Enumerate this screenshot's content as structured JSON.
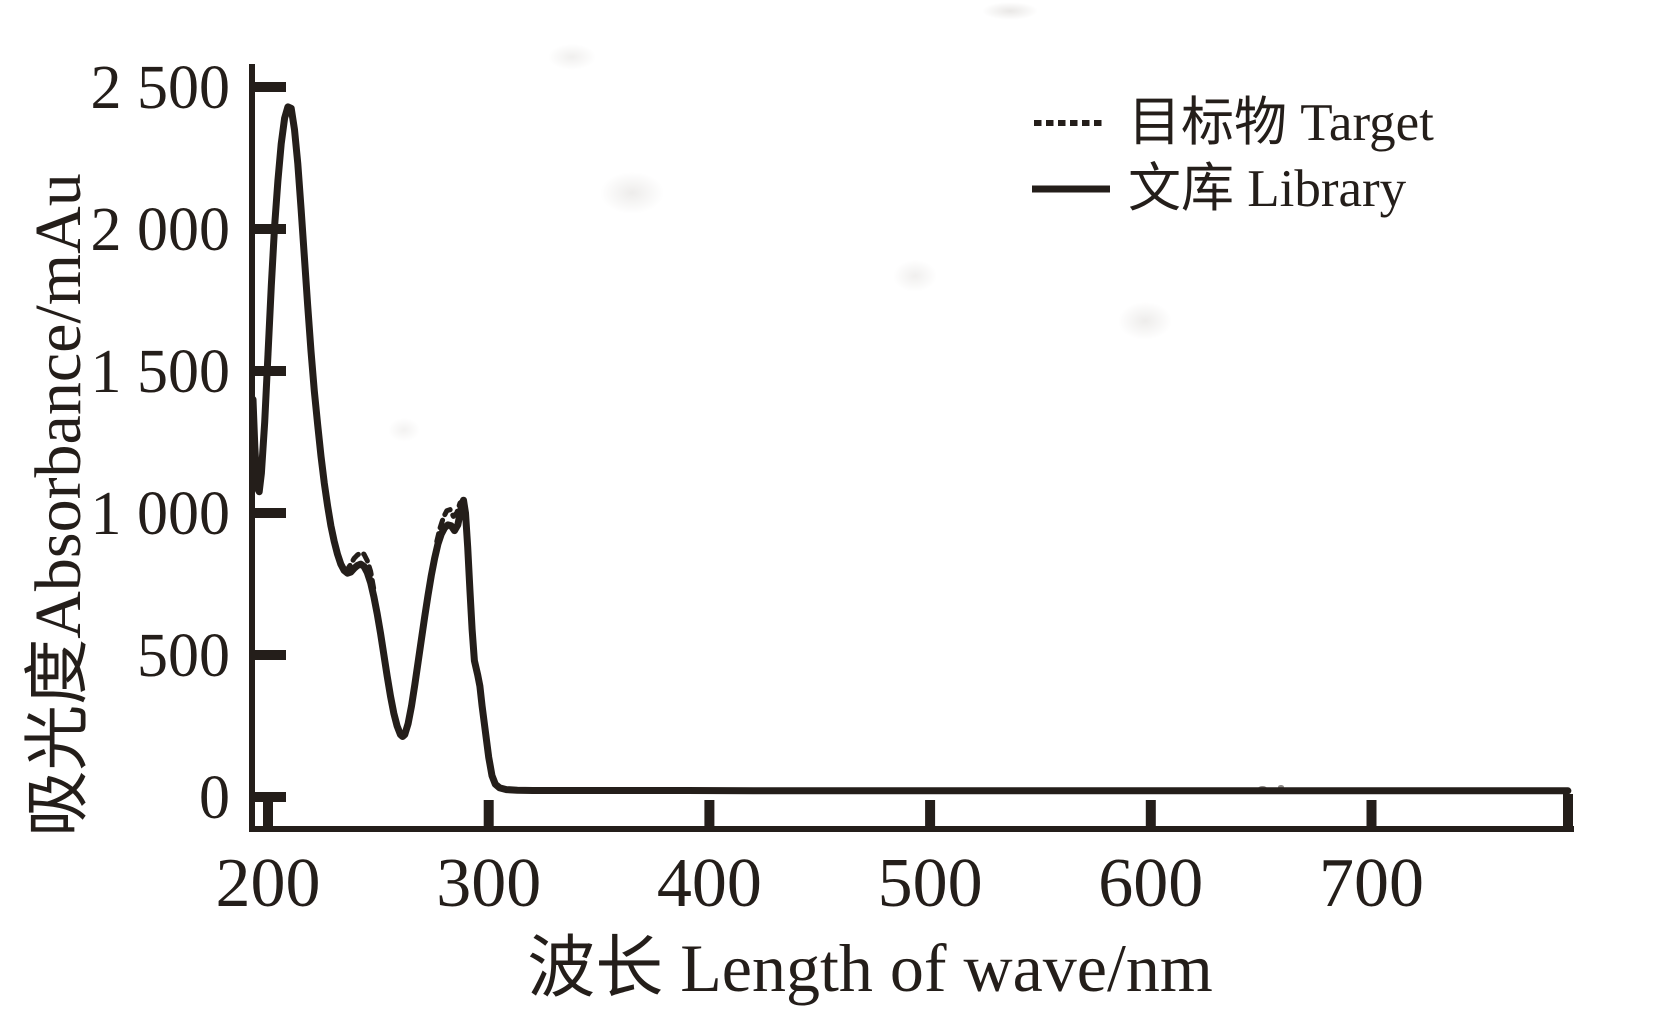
{
  "figure": {
    "background": "#ffffff",
    "ink_color": "#241e1a"
  },
  "legend": {
    "items": [
      {
        "label": "目标物 Target",
        "style": "dashed"
      },
      {
        "label": "文库 Library",
        "style": "solid"
      }
    ]
  },
  "chart_data": {
    "type": "line",
    "title": "",
    "xlabel": "波长 Length of wave/nm",
    "ylabel": "吸光度Absorbance/mAu",
    "xlim": [
      193,
      795
    ],
    "ylim": [
      0,
      2500
    ],
    "grid": false,
    "legend_position": "top-right",
    "x_ticks": [
      {
        "label": "200",
        "value": 200
      },
      {
        "label": "300",
        "value": 300
      },
      {
        "label": "400",
        "value": 400
      },
      {
        "label": "500",
        "value": 500
      },
      {
        "label": "600",
        "value": 600
      },
      {
        "label": "700",
        "value": 700
      }
    ],
    "y_ticks": [
      {
        "label": "0",
        "value": 0
      },
      {
        "label": "500",
        "value": 500
      },
      {
        "label": "1 000",
        "value": 1000
      },
      {
        "label": "1 500",
        "value": 1500
      },
      {
        "label": "2 000",
        "value": 2000
      },
      {
        "label": "2 500",
        "value": 2500
      }
    ],
    "series": [
      {
        "name": "文库 Library",
        "style": "solid",
        "color": "#241e1a",
        "points": [
          [
            193.2,
            1400
          ],
          [
            194,
            1235
          ],
          [
            195,
            1090
          ],
          [
            196,
            1075
          ],
          [
            197,
            1140
          ],
          [
            198.5,
            1320
          ],
          [
            200,
            1560
          ],
          [
            201.5,
            1800
          ],
          [
            203,
            2010
          ],
          [
            204.5,
            2170
          ],
          [
            206,
            2300
          ],
          [
            207.5,
            2390
          ],
          [
            209,
            2430
          ],
          [
            210.5,
            2425
          ],
          [
            212,
            2350
          ],
          [
            213.5,
            2230
          ],
          [
            215,
            2070
          ],
          [
            216.5,
            1900
          ],
          [
            218,
            1730
          ],
          [
            219.5,
            1570
          ],
          [
            221,
            1430
          ],
          [
            222.5,
            1310
          ],
          [
            224,
            1200
          ],
          [
            225.5,
            1105
          ],
          [
            227,
            1025
          ],
          [
            228.5,
            955
          ],
          [
            230,
            900
          ],
          [
            231.5,
            855
          ],
          [
            233,
            820
          ],
          [
            234.5,
            798
          ],
          [
            236,
            788
          ],
          [
            237.5,
            792
          ],
          [
            239,
            805
          ],
          [
            240.5,
            815
          ],
          [
            242,
            820
          ],
          [
            243.5,
            812
          ],
          [
            245,
            790
          ],
          [
            246.5,
            755
          ],
          [
            248,
            705
          ],
          [
            249.5,
            645
          ],
          [
            251,
            575
          ],
          [
            252.5,
            500
          ],
          [
            254,
            425
          ],
          [
            255.5,
            355
          ],
          [
            257,
            295
          ],
          [
            258.5,
            250
          ],
          [
            260,
            220
          ],
          [
            261,
            213
          ],
          [
            262,
            220
          ],
          [
            263.5,
            258
          ],
          [
            265,
            320
          ],
          [
            266.5,
            395
          ],
          [
            268,
            475
          ],
          [
            269.5,
            555
          ],
          [
            271,
            635
          ],
          [
            272.5,
            710
          ],
          [
            274,
            780
          ],
          [
            275.5,
            840
          ],
          [
            277,
            890
          ],
          [
            278.5,
            925
          ],
          [
            280,
            948
          ],
          [
            281.5,
            958
          ],
          [
            283,
            955
          ],
          [
            284.5,
            938
          ],
          [
            286,
            958
          ],
          [
            287.5,
            1015
          ],
          [
            288.6,
            1045
          ],
          [
            289.5,
            1000
          ],
          [
            290.5,
            880
          ],
          [
            291.5,
            730
          ],
          [
            292.5,
            590
          ],
          [
            293.5,
            480
          ],
          [
            295,
            430
          ],
          [
            296,
            390
          ],
          [
            297,
            320
          ],
          [
            298.5,
            230
          ],
          [
            300,
            140
          ],
          [
            301.5,
            75
          ],
          [
            303,
            45
          ],
          [
            305,
            32
          ],
          [
            308,
            26
          ],
          [
            313,
            24
          ],
          [
            320,
            23
          ],
          [
            335,
            23
          ],
          [
            360,
            23
          ],
          [
            390,
            23
          ],
          [
            420,
            22
          ],
          [
            460,
            22
          ],
          [
            500,
            22
          ],
          [
            540,
            22
          ],
          [
            580,
            22
          ],
          [
            620,
            22
          ],
          [
            660,
            22
          ],
          [
            700,
            22
          ],
          [
            740,
            22
          ],
          [
            770,
            22
          ],
          [
            789,
            22
          ]
        ]
      },
      {
        "name": "目标物 Target",
        "style": "dashed",
        "color": "#241e1a",
        "note": "coincides with Library curve except slight deviations near 240 nm and 284 nm",
        "segments": [
          [
            [
              234.5,
              800
            ],
            [
              236,
              802
            ],
            [
              237.5,
              820
            ],
            [
              239,
              840
            ],
            [
              240.5,
              852
            ],
            [
              242,
              860
            ],
            [
              243.5,
              855
            ],
            [
              245,
              832
            ],
            [
              246.5,
              795
            ],
            [
              248,
              730
            ]
          ],
          [
            [
              276.5,
              900
            ],
            [
              278,
              948
            ],
            [
              279.5,
              985
            ],
            [
              281,
              1008
            ],
            [
              282.5,
              1012
            ],
            [
              284,
              988
            ],
            [
              285.5,
              1000
            ],
            [
              287,
              1035
            ],
            [
              288.6,
              1045
            ]
          ]
        ]
      }
    ]
  }
}
